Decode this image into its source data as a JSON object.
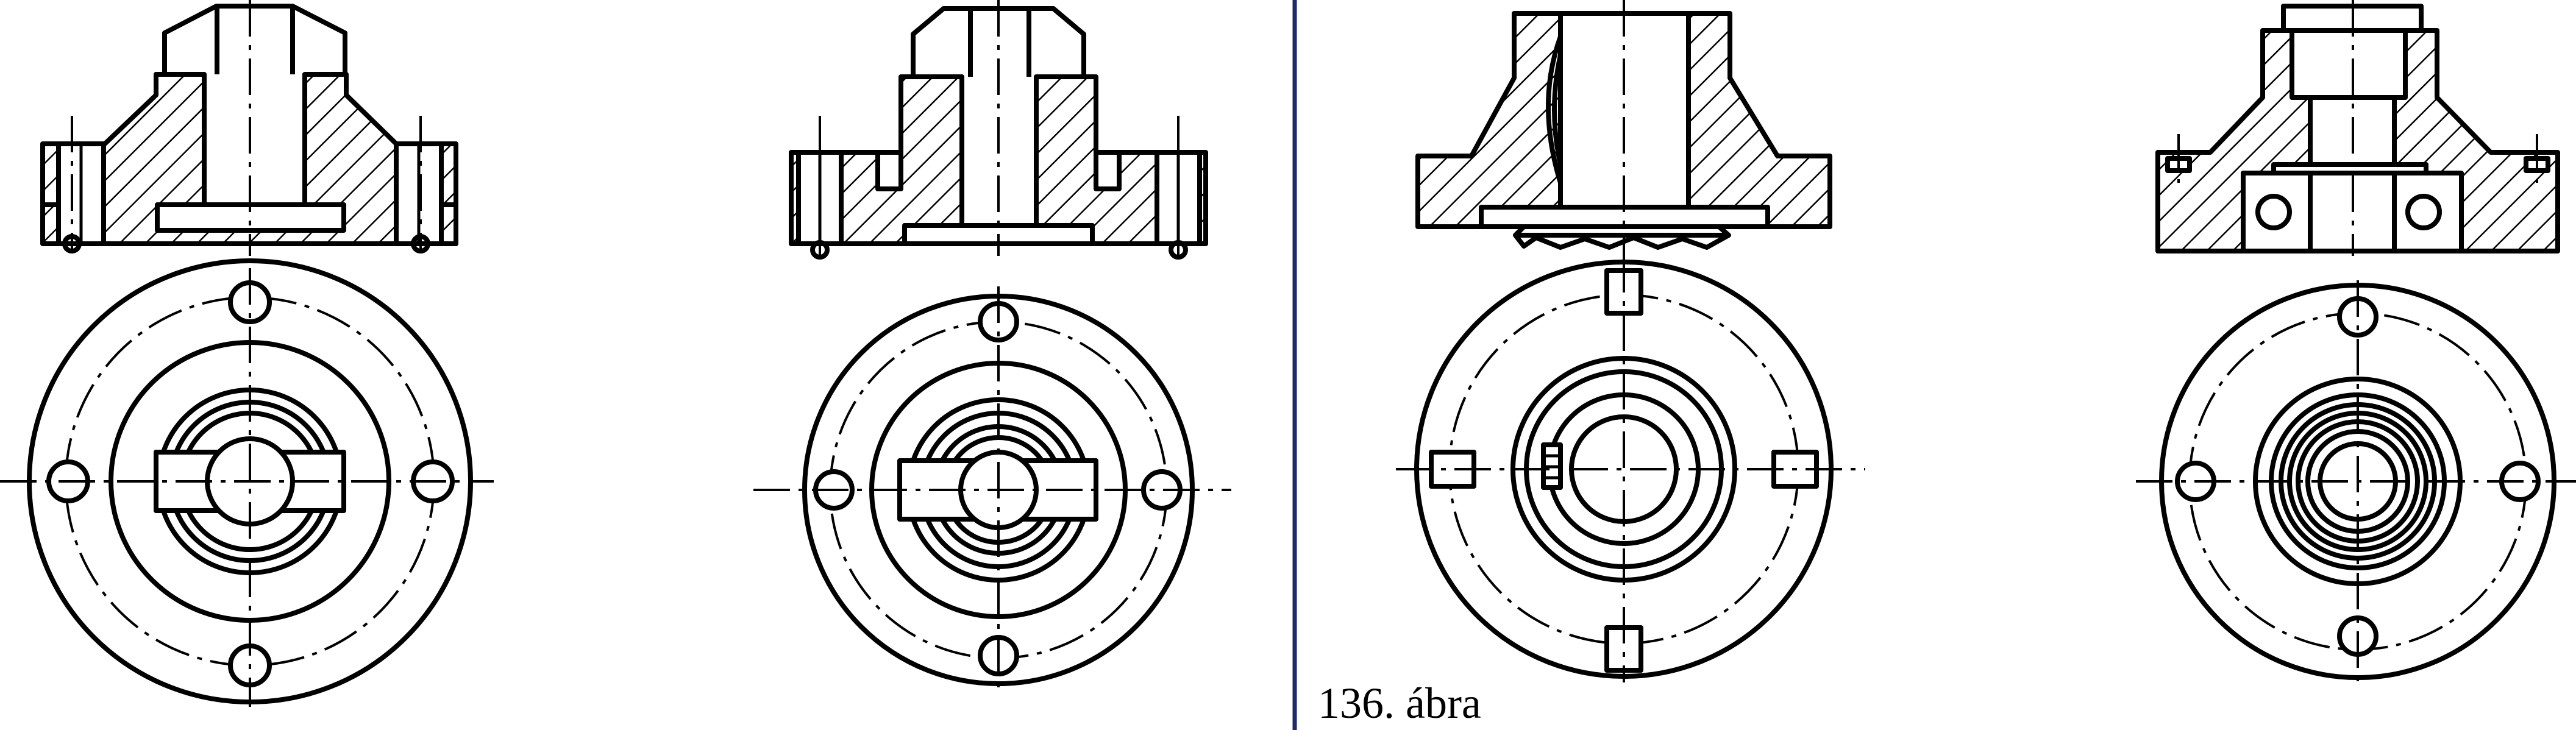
{
  "figure": {
    "caption": "136. ábra",
    "colors": {
      "lines": "#000000",
      "background": "#ffffff",
      "separator": "#1f2a6b"
    },
    "panels": [
      {
        "id": "a",
        "group": "left",
        "has_hatching": true,
        "bolt_holes": 4,
        "bolts_in_section": 2
      },
      {
        "id": "b",
        "group": "left",
        "has_hatching": true,
        "bolt_holes": 4,
        "bolts_in_section": 2
      },
      {
        "id": "c",
        "group": "right",
        "has_hatching": true,
        "slots": 4
      },
      {
        "id": "d",
        "group": "right",
        "has_hatching": true,
        "bolt_holes": 4,
        "has_bearing": true
      }
    ]
  }
}
